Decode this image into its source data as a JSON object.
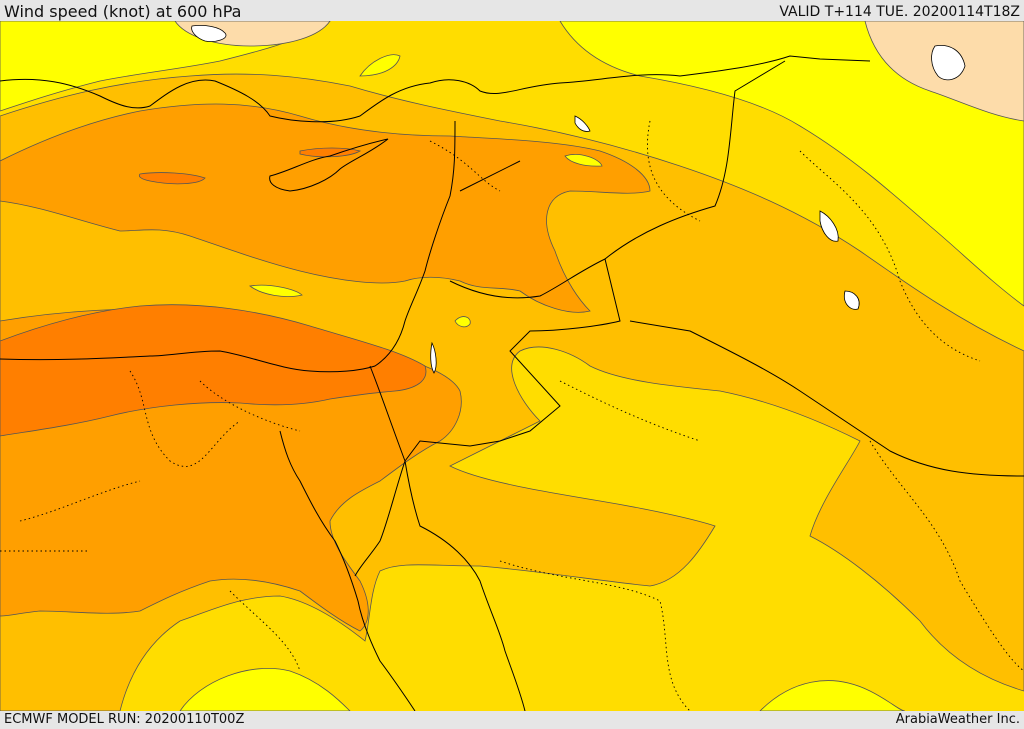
{
  "header": {
    "title": "Wind speed (knot) at 600 hPa",
    "valid": "VALID T+114 TUE. 20200114T18Z"
  },
  "footer": {
    "model_run": "ECMWF MODEL RUN: 20200110T00Z",
    "credit": "ArabiaWeather Inc."
  },
  "map": {
    "colors": {
      "band_pale": "#fddcaa",
      "band_yellow": "#ffff00",
      "band_gold": "#ffdd00",
      "band_amber": "#ffbf00",
      "band_orange": "#ff9f00",
      "band_dark_orange": "#ff7f00",
      "boundary": "#000000",
      "contour": "#555555"
    }
  }
}
